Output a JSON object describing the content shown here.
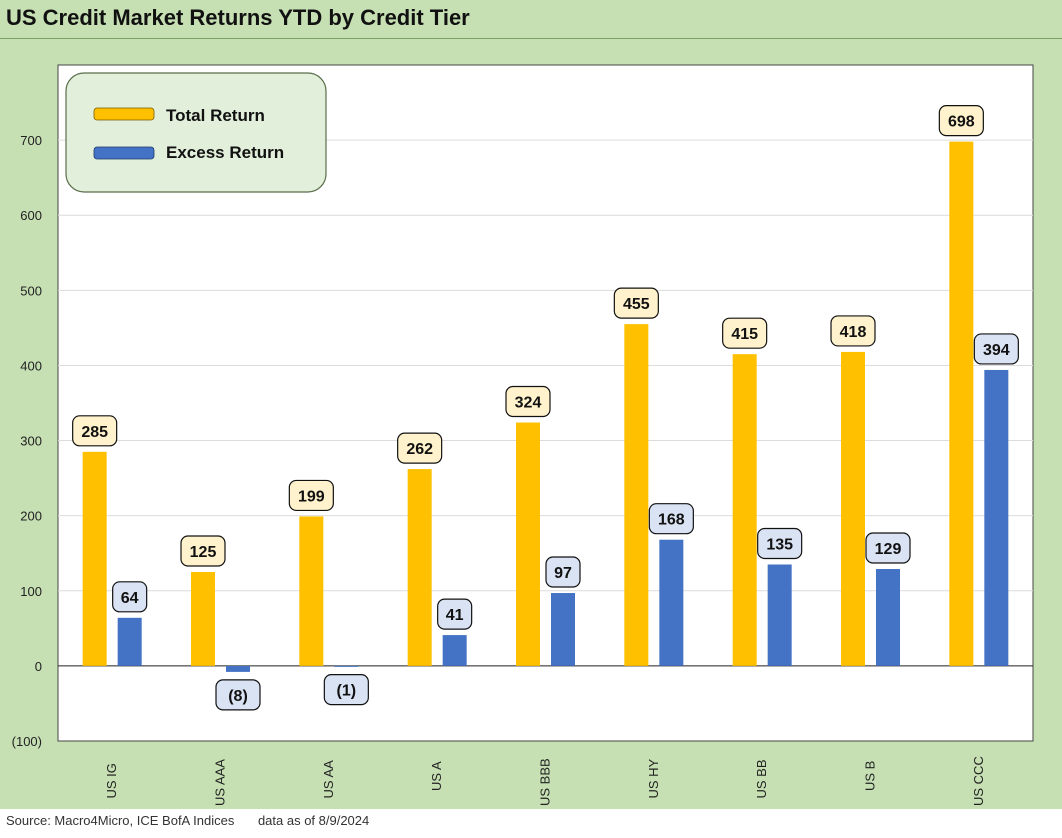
{
  "title": "US Credit Market Returns YTD by Credit Tier",
  "footer": {
    "source": "Source: Macro4Micro, ICE BofA Indices",
    "as_of": "data as of 8/9/2024"
  },
  "colors": {
    "total": "#ffc000",
    "excess": "#4472c4",
    "total_label_bg": "#fff2cc",
    "excess_label_bg": "#dae3f3",
    "legend_bg": "#e2efda",
    "frame_bg": "#c6e0b4"
  },
  "chart_data": {
    "type": "bar",
    "title": "US Credit Market Returns YTD by Credit Tier",
    "categories": [
      "US IG",
      "US AAA",
      "US AA",
      "US A",
      "US BBB",
      "US HY",
      "US BB",
      "US B",
      "US CCC"
    ],
    "series": [
      {
        "name": "Total Return",
        "values": [
          285,
          125,
          199,
          262,
          324,
          455,
          415,
          418,
          698
        ]
      },
      {
        "name": "Excess Return",
        "values": [
          64,
          -8,
          -1,
          41,
          97,
          168,
          135,
          129,
          394
        ]
      }
    ],
    "value_labels": {
      "Total Return": [
        "285",
        "125",
        "199",
        "262",
        "324",
        "455",
        "415",
        "418",
        "698"
      ],
      "Excess Return": [
        "64",
        "(8)",
        "(1)",
        "41",
        "97",
        "168",
        "135",
        "129",
        "394"
      ]
    },
    "yticks": [
      -100,
      0,
      100,
      200,
      300,
      400,
      500,
      600,
      700
    ],
    "ytick_labels": [
      "(100)",
      "0",
      "100",
      "200",
      "300",
      "400",
      "500",
      "600",
      "700"
    ],
    "ylim": [
      -100,
      800
    ],
    "xlabel": "",
    "ylabel": "",
    "grid": true,
    "legend_position": "top-left"
  }
}
